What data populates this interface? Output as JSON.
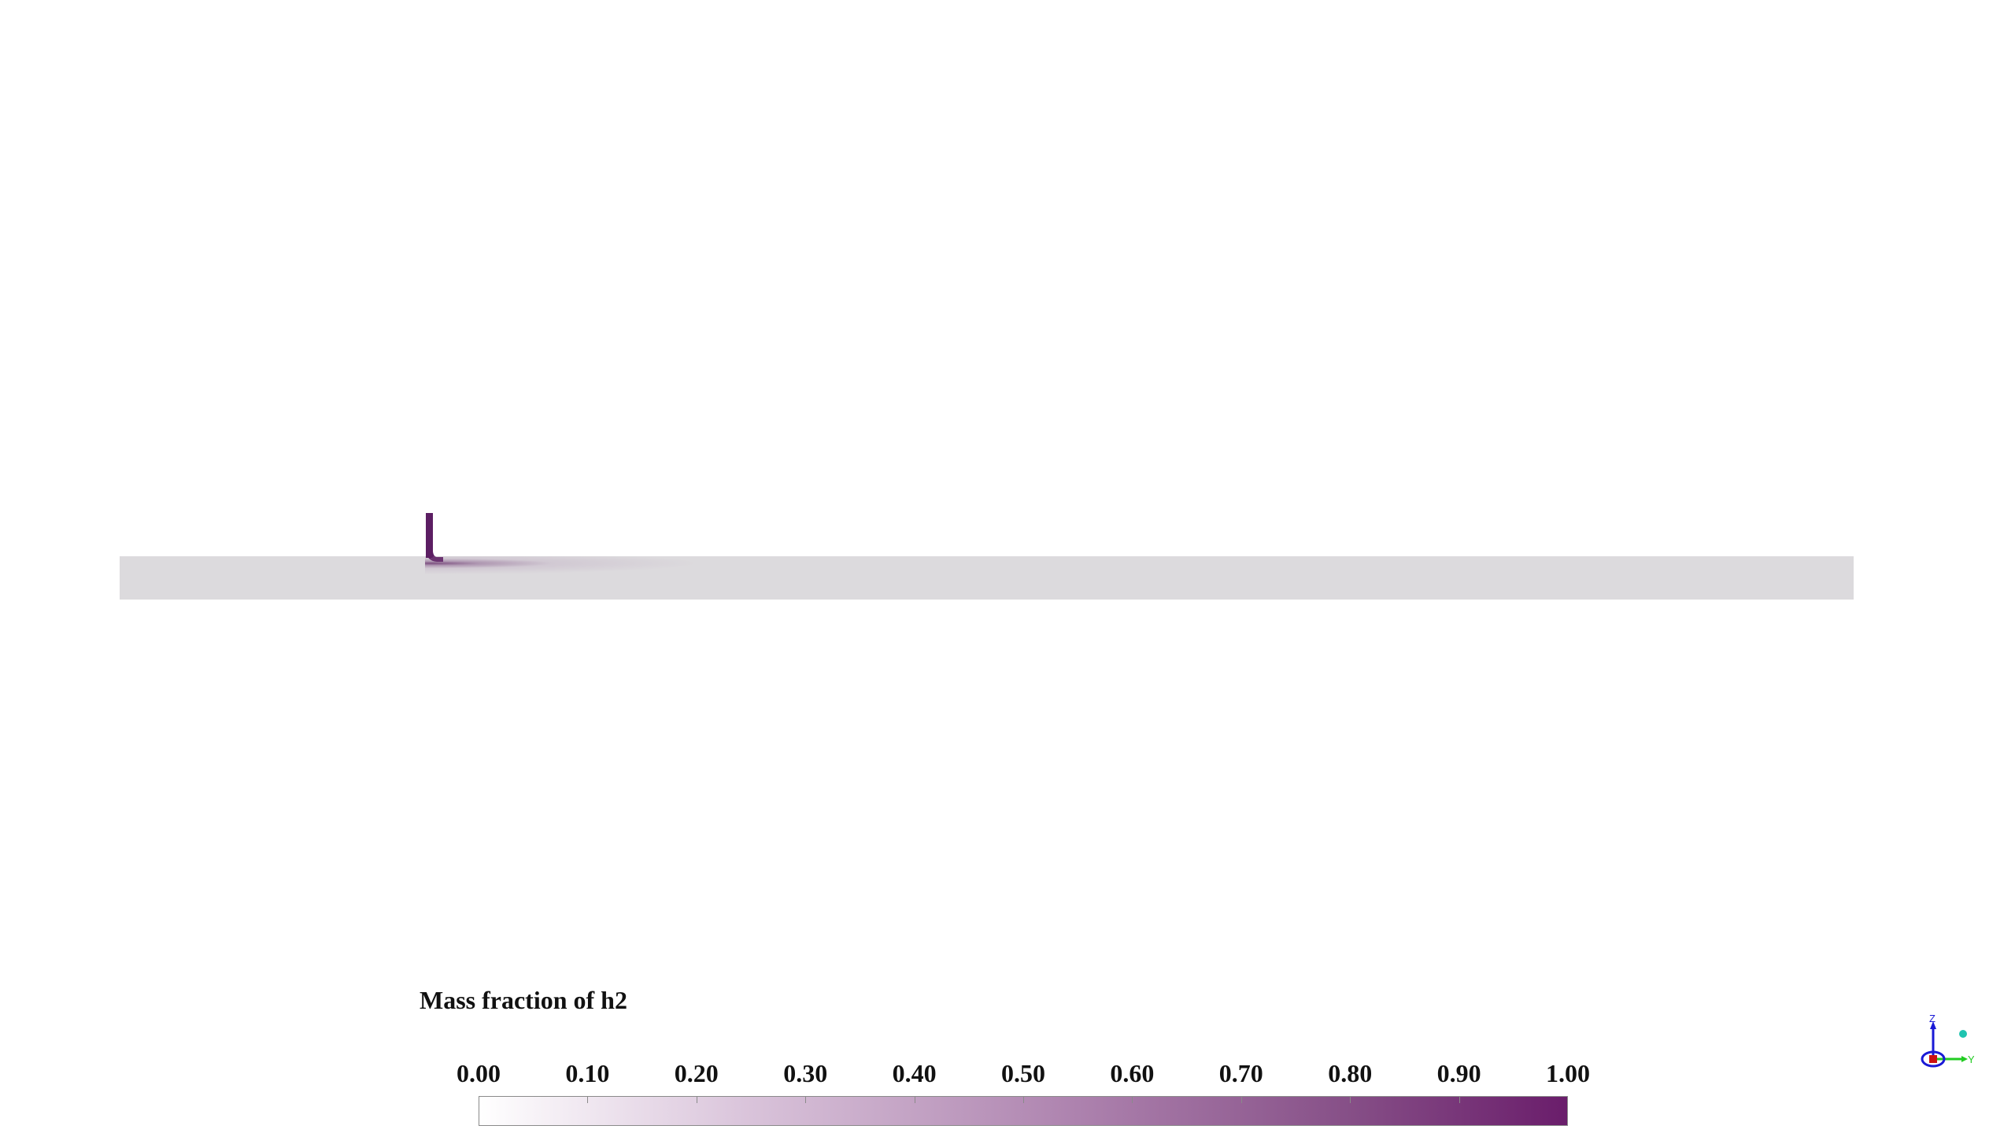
{
  "viewer": {
    "background": "#ffffff",
    "domain_color": "#dcdadd",
    "inlet_color": "#5c1e63"
  },
  "colorbar": {
    "title": "Mass fraction of h2",
    "min": 0.0,
    "max": 1.0,
    "color_low": "#ffffff",
    "color_high": "#6a1d6b",
    "ticks": [
      "0.00",
      "0.10",
      "0.20",
      "0.30",
      "0.40",
      "0.50",
      "0.60",
      "0.70",
      "0.80",
      "0.90",
      "1.00"
    ]
  },
  "axes": {
    "z_label": "Z",
    "y_label": "Y",
    "z_color": "#1a1ad6",
    "y_color": "#22cc22",
    "x_color": "#cc1111",
    "sphere_color": "#1fc4b0"
  }
}
